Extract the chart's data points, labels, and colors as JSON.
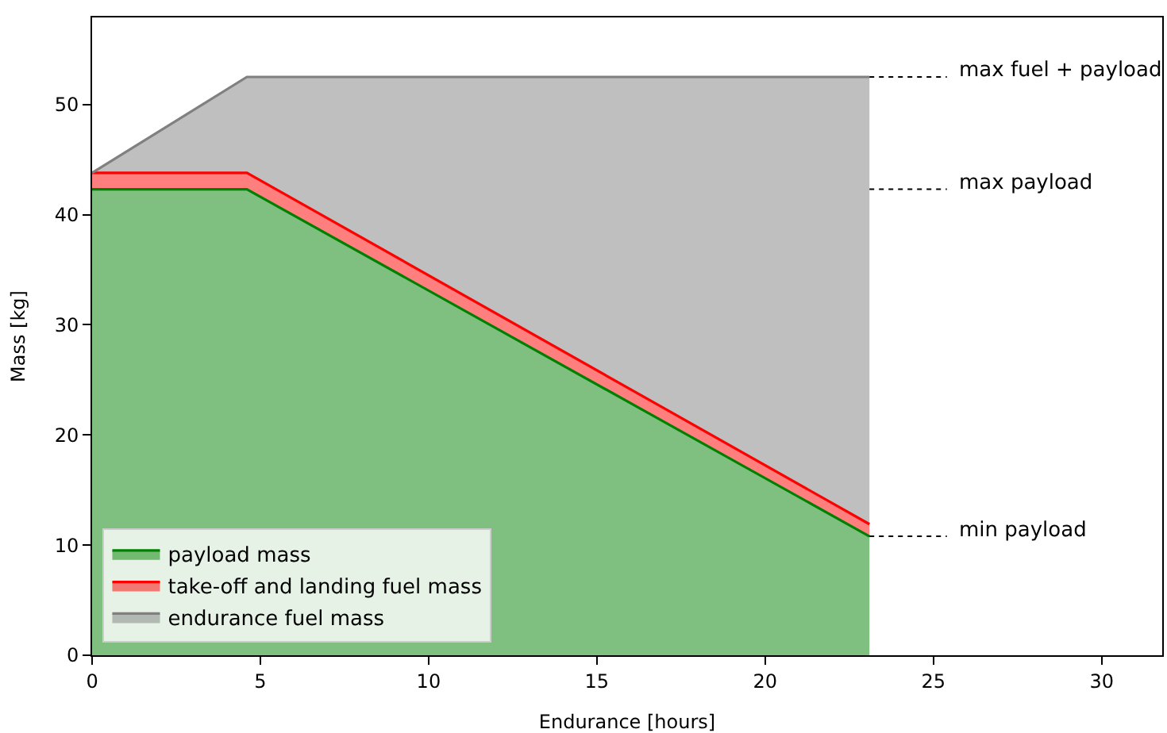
{
  "chart_data": {
    "type": "area",
    "stacked": true,
    "xlabel": "Endurance [hours]",
    "ylabel": "Mass [kg]",
    "x": [
      0,
      4.6,
      23.1
    ],
    "series": [
      {
        "name": "payload mass",
        "color": "#008000",
        "values": [
          42.3,
          42.3,
          10.8
        ]
      },
      {
        "name": "take-off and landing fuel mass",
        "color": "#ff0000",
        "values": [
          1.5,
          1.5,
          1.1
        ]
      },
      {
        "name": "endurance fuel mass",
        "color": "#808080",
        "values": [
          0,
          8.7,
          40.6
        ]
      }
    ],
    "xlim": [
      0,
      31.8
    ],
    "ylim": [
      0,
      57.9
    ],
    "xticks": [
      0,
      5,
      10,
      15,
      20,
      25,
      30
    ],
    "yticks": [
      0,
      10,
      20,
      30,
      40,
      50
    ],
    "ref_lines": [
      {
        "axis": "y",
        "value": 52.5,
        "label": "max fuel + payload",
        "line_style": "dotted"
      },
      {
        "axis": "y",
        "value": 42.3,
        "label": "max payload",
        "line_style": "dotted"
      },
      {
        "axis": "y",
        "value": 10.8,
        "label": "min payload",
        "line_style": "dotted"
      }
    ],
    "legend": "bottom left"
  }
}
